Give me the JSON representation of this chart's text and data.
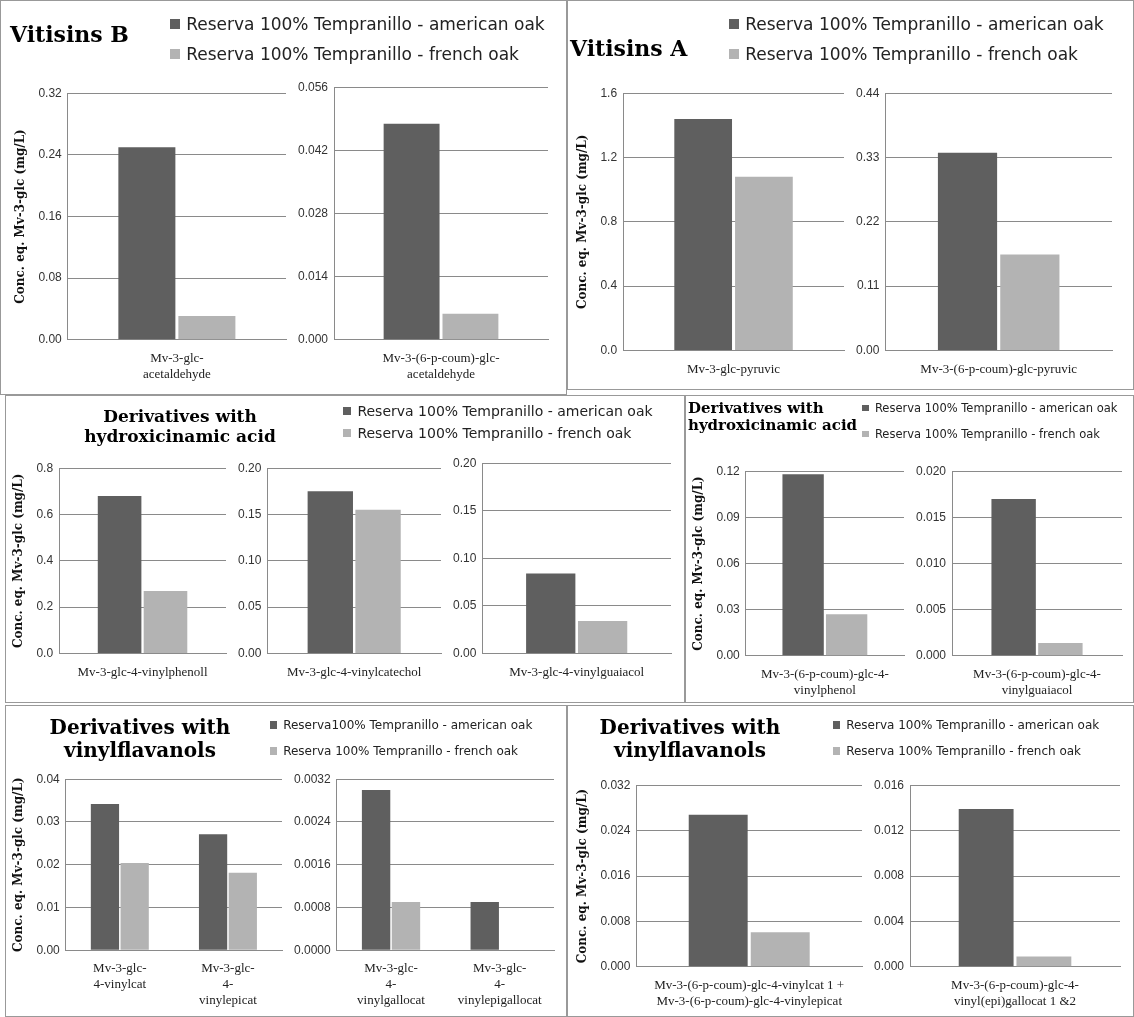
{
  "chart_data": [
    {
      "type": "bar",
      "title": "Vitisins B",
      "ylabel": "Conc. eq. Mv-3-glc (mg/L)",
      "legend": "top right",
      "grid": "y",
      "categories": [
        "Mv-3-glc-acetaldehyde"
      ],
      "ylim": [
        0,
        0.32
      ],
      "yticks": [
        {
          "value": 0,
          "label": "0.00"
        },
        {
          "value": 0.08,
          "label": "0.08"
        },
        {
          "value": 0.16,
          "label": "0.16"
        },
        {
          "value": 0.24,
          "label": "0.24"
        },
        {
          "value": 0.32,
          "label": "0.32"
        }
      ],
      "series": [
        {
          "name": "Reserva 100% Tempranillo - american oak",
          "color": "#5f5f5f",
          "values": [
            0.25
          ]
        },
        {
          "name": "Reserva 100% Tempranillo - french oak",
          "color": "#b3b3b3",
          "values": [
            0.031
          ]
        }
      ]
    },
    {
      "type": "bar",
      "grid": "y",
      "categories": [
        "Mv-3-(6-p-coum)-glc-acetaldehyde"
      ],
      "ylim": [
        0,
        0.056
      ],
      "yticks": [
        {
          "value": 0,
          "label": "0.000"
        },
        0.014,
        0.028,
        0.042,
        0.056
      ],
      "series": [
        {
          "color": "#5f5f5f",
          "values": [
            0.0479
          ]
        },
        {
          "color": "#b3b3b3",
          "values": [
            0.0058
          ]
        }
      ]
    },
    {
      "type": "bar",
      "title": "Vitisins A",
      "ylabel": "Conc. eq. Mv-3-glc (mg/L)",
      "legend": "top right",
      "grid": "y",
      "categories": [
        "Mv-3-glc-pyruvic"
      ],
      "ylim": [
        0,
        1.6
      ],
      "yticks": [
        {
          "value": 0,
          "label": "0.0"
        },
        0.4,
        0.8,
        1.2,
        1.6
      ],
      "series": [
        {
          "name": "Reserva 100% Tempranillo - american oak",
          "color": "#5f5f5f",
          "values": [
            1.44
          ]
        },
        {
          "name": "Reserva 100% Tempranillo - french oak",
          "color": "#b3b3b3",
          "values": [
            1.08
          ]
        }
      ]
    },
    {
      "type": "bar",
      "grid": "y",
      "categories": [
        "Mv-3-(6-p-coum)-glc-pyruvic"
      ],
      "ylim": [
        0,
        0.44
      ],
      "yticks": [
        {
          "value": 0,
          "label": "0.00"
        },
        0.11,
        0.22,
        0.33,
        0.44
      ],
      "series": [
        {
          "color": "#5f5f5f",
          "values": [
            0.338
          ]
        },
        {
          "color": "#b3b3b3",
          "values": [
            0.164
          ]
        }
      ]
    },
    {
      "type": "bar",
      "title": "Derivatives with hydroxicinamic acid",
      "ylabel": "Conc. eq. Mv-3-glc (mg/L)",
      "legend": "top right",
      "grid": "y",
      "categories": [
        "Mv-3-glc-4-vinylphenoll"
      ],
      "ylim": [
        0,
        0.8
      ],
      "yticks": [
        {
          "value": 0,
          "label": "0.0"
        },
        0.2,
        0.4,
        0.6,
        0.8
      ],
      "series": [
        {
          "name": "Reserva 100% Tempranillo - american oak",
          "color": "#5f5f5f",
          "values": [
            0.68
          ]
        },
        {
          "name": "Reserva 100% Tempranillo - french oak",
          "color": "#b3b3b3",
          "values": [
            0.27
          ]
        }
      ]
    },
    {
      "type": "bar",
      "grid": "y",
      "categories": [
        "Mv-3-glc-4-vinylcatechol"
      ],
      "ylim": [
        0,
        0.2
      ],
      "yticks": [
        {
          "value": 0,
          "label": "0.00"
        },
        0.05,
        {
          "value": 0.1,
          "label": "0.10"
        },
        0.15,
        {
          "value": 0.2,
          "label": "0.20"
        }
      ],
      "series": [
        {
          "color": "#5f5f5f",
          "values": [
            0.175
          ]
        },
        {
          "color": "#b3b3b3",
          "values": [
            0.155
          ]
        }
      ]
    },
    {
      "type": "bar",
      "grid": "y",
      "categories": [
        "Mv-3-glc-4-vinylguaiacol"
      ],
      "ylim": [
        0,
        0.2
      ],
      "yticks": [
        {
          "value": 0,
          "label": "0.00"
        },
        0.05,
        {
          "value": 0.1,
          "label": "0.10"
        },
        0.15,
        {
          "value": 0.2,
          "label": "0.20"
        }
      ],
      "series": [
        {
          "color": "#5f5f5f",
          "values": [
            0.084
          ]
        },
        {
          "color": "#b3b3b3",
          "values": [
            0.034
          ]
        }
      ]
    },
    {
      "type": "bar",
      "title": "Derivatives with hydroxicinamic acid",
      "ylabel": "Conc. eq. Mv-3-glc (mg/L)",
      "legend": "top right",
      "grid": "y",
      "categories": [
        "Mv-3-(6-p-coum)-glc-4-vinylphenol"
      ],
      "ylim": [
        0,
        0.12
      ],
      "yticks": [
        {
          "value": 0,
          "label": "0.00"
        },
        0.03,
        0.06,
        0.09,
        0.12
      ],
      "series": [
        {
          "name": "Reserva 100% Tempranillo - american oak",
          "color": "#5f5f5f",
          "values": [
            0.118
          ]
        },
        {
          "name": "Reserva 100% Tempranillo - french oak",
          "color": "#b3b3b3",
          "values": [
            0.027
          ]
        }
      ]
    },
    {
      "type": "bar",
      "grid": "y",
      "categories": [
        "Mv-3-(6-p-coum)-glc-4-vinylguaiacol"
      ],
      "ylim": [
        0,
        0.02
      ],
      "yticks": [
        {
          "value": 0,
          "label": "0.000"
        },
        0.005,
        {
          "value": 0.01,
          "label": "0.010"
        },
        0.015,
        {
          "value": 0.02,
          "label": "0.020"
        }
      ],
      "series": [
        {
          "color": "#5f5f5f",
          "values": [
            0.017
          ]
        },
        {
          "color": "#b3b3b3",
          "values": [
            0.0014
          ]
        }
      ]
    },
    {
      "type": "bar",
      "title": "Derivatives with vinylflavanols",
      "ylabel": "Conc. eq. Mv-3-glc (mg/L)",
      "legend": "top right",
      "grid": "y",
      "categories": [
        "Mv-3-glc-4-vinylcat",
        "Mv-3-glc-4-vinylepicat"
      ],
      "ylim": [
        0,
        0.04
      ],
      "yticks": [
        {
          "value": 0,
          "label": "0.00"
        },
        0.01,
        0.02,
        0.03,
        0.04
      ],
      "series": [
        {
          "name": "Reserva100% Tempranillo - american oak",
          "color": "#5f5f5f",
          "values": [
            0.0342,
            0.0271
          ]
        },
        {
          "name": "Reserva 100% Tempranillo - french oak",
          "color": "#b3b3b3",
          "values": [
            0.0204,
            0.0181
          ]
        }
      ]
    },
    {
      "type": "bar",
      "grid": "y",
      "categories": [
        "Mv-3-glc-4-vinylgallocat",
        "Mv-3-glc-4-vinylepigallocat"
      ],
      "ylim": [
        0,
        0.0032
      ],
      "yticks": [
        {
          "value": 0,
          "label": "0.0000"
        },
        0.0008,
        0.0016,
        0.0024,
        0.0032
      ],
      "series": [
        {
          "color": "#5f5f5f",
          "values": [
            0.003,
            0.0009
          ]
        },
        {
          "color": "#b3b3b3",
          "values": [
            0.0009,
            null
          ]
        }
      ]
    },
    {
      "type": "bar",
      "title": "Derivatives with vinylflavanols",
      "ylabel": "Conc. eq. Mv-3-glc (mg/L)",
      "legend": "top right",
      "grid": "y",
      "categories": [
        "Mv-3-(6-p-coum)-glc-4-vinylcat 1 + Mv-3-(6-p-coum)-glc-4-vinylepicat"
      ],
      "ylim": [
        0,
        0.032
      ],
      "yticks": [
        {
          "value": 0,
          "label": "0.000"
        },
        0.008,
        0.016,
        0.024,
        0.032
      ],
      "series": [
        {
          "name": "Reserva 100% Tempranillo - american oak",
          "color": "#5f5f5f",
          "values": [
            0.0268
          ]
        },
        {
          "name": "Reserva 100% Tempranillo - french oak",
          "color": "#b3b3b3",
          "values": [
            0.0061
          ]
        }
      ]
    },
    {
      "type": "bar",
      "grid": "y",
      "categories": [
        "Mv-3-(6-p-coum)-glc-4-vinyl(epi)gallocat 1 &2"
      ],
      "ylim": [
        0,
        0.016
      ],
      "yticks": [
        {
          "value": 0,
          "label": "0.000"
        },
        0.004,
        0.008,
        0.012,
        0.016
      ],
      "series": [
        {
          "color": "#5f5f5f",
          "values": [
            0.0139
          ]
        },
        {
          "color": "#b3b3b3",
          "values": [
            0.0009
          ]
        }
      ]
    }
  ]
}
